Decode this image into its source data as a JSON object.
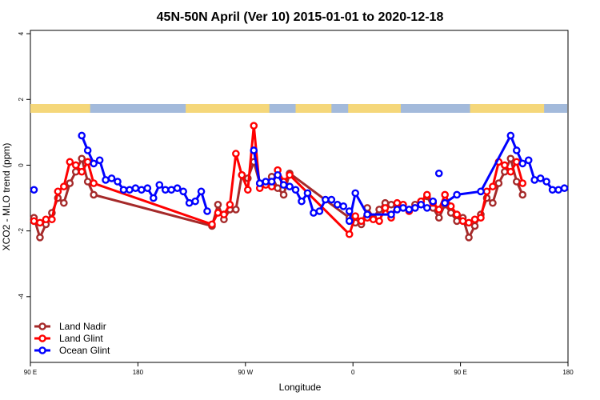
{
  "chart_data": {
    "type": "line",
    "title": "45N-50N April (Ver 10)   2015-01-01 to 2020-12-18",
    "xlabel": "Longitude",
    "ylabel": "XCO2 - MLO trend (ppm)",
    "xlim": [
      90,
      540
    ],
    "ylim": [
      -6,
      4.1
    ],
    "x_ticks": [
      {
        "value": 90,
        "label": "90 E"
      },
      {
        "value": 180,
        "label": "180"
      },
      {
        "value": 270,
        "label": "90 W"
      },
      {
        "value": 360,
        "label": "0"
      },
      {
        "value": 450,
        "label": "90 E"
      },
      {
        "value": 540,
        "label": "180"
      }
    ],
    "y_ticks": [
      -4,
      -2,
      0,
      2,
      4
    ],
    "land_bar_colors": {
      "land": "#F5D77A",
      "ocean": "#A3BADB"
    },
    "land_segments": [
      [
        90,
        140
      ],
      [
        220,
        290
      ],
      [
        312,
        342
      ],
      [
        356,
        400
      ],
      [
        458,
        520
      ]
    ],
    "legend_position": "bottom-left",
    "series": [
      {
        "name": "Land Nadir",
        "color": "#A52A2A",
        "points": [
          [
            93,
            -1.6
          ],
          [
            98,
            -2.2
          ],
          [
            103,
            -1.8
          ],
          [
            108,
            -1.45
          ],
          [
            113,
            -1.0
          ],
          [
            118,
            -1.15
          ],
          [
            123,
            -0.55
          ],
          [
            128,
            -0.2
          ],
          [
            133,
            0.2
          ],
          [
            138,
            -0.5
          ],
          [
            143,
            -0.9
          ],
          [
            242,
            -1.85
          ],
          [
            247,
            -1.2
          ],
          [
            252,
            -1.65
          ],
          [
            257,
            -1.35
          ],
          [
            262,
            -1.35
          ],
          [
            267,
            -0.3
          ],
          [
            272,
            -0.4
          ],
          [
            277,
            0.1
          ],
          [
            282,
            -0.55
          ],
          [
            287,
            -0.55
          ],
          [
            292,
            -0.35
          ],
          [
            297,
            -0.7
          ],
          [
            302,
            -0.9
          ],
          [
            307,
            -0.25
          ],
          [
            357,
            -1.6
          ],
          [
            362,
            -1.75
          ],
          [
            367,
            -1.8
          ],
          [
            372,
            -1.3
          ],
          [
            377,
            -1.6
          ],
          [
            382,
            -1.35
          ],
          [
            387,
            -1.15
          ],
          [
            392,
            -1.2
          ],
          [
            397,
            -1.25
          ],
          [
            402,
            -1.3
          ],
          [
            407,
            -1.35
          ],
          [
            412,
            -1.2
          ],
          [
            417,
            -1.1
          ],
          [
            422,
            -0.95
          ],
          [
            427,
            -1.3
          ],
          [
            432,
            -1.6
          ],
          [
            437,
            -1.2
          ],
          [
            442,
            -1.45
          ],
          [
            447,
            -1.7
          ],
          [
            452,
            -1.6
          ],
          [
            457,
            -2.2
          ],
          [
            462,
            -1.85
          ],
          [
            467,
            -1.5
          ],
          [
            472,
            -1.0
          ],
          [
            477,
            -1.15
          ],
          [
            482,
            -0.55
          ],
          [
            487,
            -0.2
          ],
          [
            492,
            0.2
          ],
          [
            497,
            -0.5
          ],
          [
            502,
            -0.9
          ]
        ]
      },
      {
        "name": "Land Glint",
        "color": "#FF0000",
        "points": [
          [
            93,
            -1.7
          ],
          [
            98,
            -1.75
          ],
          [
            103,
            -1.65
          ],
          [
            108,
            -1.65
          ],
          [
            113,
            -0.8
          ],
          [
            118,
            -0.65
          ],
          [
            123,
            0.1
          ],
          [
            128,
            0.0
          ],
          [
            133,
            -0.2
          ],
          [
            138,
            0.1
          ],
          [
            143,
            -0.55
          ],
          [
            242,
            -1.8
          ],
          [
            247,
            -1.45
          ],
          [
            252,
            -1.5
          ],
          [
            257,
            -1.2
          ],
          [
            262,
            0.35
          ],
          [
            267,
            -0.3
          ],
          [
            272,
            -0.75
          ],
          [
            277,
            1.2
          ],
          [
            282,
            -0.7
          ],
          [
            287,
            -0.6
          ],
          [
            292,
            -0.65
          ],
          [
            297,
            -0.15
          ],
          [
            302,
            -0.5
          ],
          [
            307,
            -0.3
          ],
          [
            357,
            -2.1
          ],
          [
            362,
            -1.55
          ],
          [
            367,
            -1.7
          ],
          [
            372,
            -1.6
          ],
          [
            377,
            -1.65
          ],
          [
            382,
            -1.7
          ],
          [
            387,
            -1.3
          ],
          [
            392,
            -1.6
          ],
          [
            397,
            -1.15
          ],
          [
            402,
            -1.2
          ],
          [
            407,
            -1.4
          ],
          [
            412,
            -1.3
          ],
          [
            417,
            -1.1
          ],
          [
            422,
            -0.9
          ],
          [
            427,
            -1.15
          ],
          [
            432,
            -1.35
          ],
          [
            437,
            -0.9
          ],
          [
            442,
            -1.25
          ],
          [
            447,
            -1.5
          ],
          [
            452,
            -1.7
          ],
          [
            457,
            -1.75
          ],
          [
            462,
            -1.65
          ],
          [
            467,
            -1.6
          ],
          [
            472,
            -0.8
          ],
          [
            477,
            -0.65
          ],
          [
            482,
            0.1
          ],
          [
            487,
            0.0
          ],
          [
            492,
            -0.2
          ],
          [
            497,
            0.1
          ],
          [
            502,
            -0.55
          ]
        ]
      },
      {
        "name": "Ocean Glint",
        "color": "#0000FF",
        "points": [
          [
            93,
            -0.75
          ],
          [
            133,
            0.9
          ],
          [
            138,
            0.45
          ],
          [
            143,
            0.05
          ],
          [
            148,
            0.15
          ],
          [
            153,
            -0.45
          ],
          [
            158,
            -0.4
          ],
          [
            163,
            -0.5
          ],
          [
            168,
            -0.75
          ],
          [
            173,
            -0.75
          ],
          [
            178,
            -0.7
          ],
          [
            183,
            -0.75
          ],
          [
            188,
            -0.7
          ],
          [
            193,
            -1.0
          ],
          [
            198,
            -0.6
          ],
          [
            203,
            -0.75
          ],
          [
            208,
            -0.75
          ],
          [
            213,
            -0.7
          ],
          [
            218,
            -0.8
          ],
          [
            223,
            -1.15
          ],
          [
            228,
            -1.1
          ],
          [
            233,
            -0.8
          ],
          [
            238,
            -1.4
          ],
          [
            277,
            0.45
          ],
          [
            282,
            -0.55
          ],
          [
            287,
            -0.5
          ],
          [
            292,
            -0.5
          ],
          [
            297,
            -0.3
          ],
          [
            302,
            -0.6
          ],
          [
            307,
            -0.65
          ],
          [
            312,
            -0.75
          ],
          [
            317,
            -1.1
          ],
          [
            322,
            -0.85
          ],
          [
            327,
            -1.45
          ],
          [
            332,
            -1.4
          ],
          [
            337,
            -1.05
          ],
          [
            342,
            -1.05
          ],
          [
            347,
            -1.2
          ],
          [
            352,
            -1.25
          ],
          [
            357,
            -1.4
          ],
          [
            357,
            -1.7
          ],
          [
            362,
            -0.85
          ],
          [
            372,
            -1.5
          ],
          [
            392,
            -1.5
          ],
          [
            397,
            -1.35
          ],
          [
            402,
            -1.3
          ],
          [
            407,
            -1.35
          ],
          [
            412,
            -1.3
          ],
          [
            417,
            -1.2
          ],
          [
            422,
            -1.3
          ],
          [
            427,
            -1.1
          ],
          [
            432,
            -0.25
          ],
          [
            437,
            -1.15
          ],
          [
            447,
            -0.9
          ],
          [
            467,
            -0.8
          ],
          [
            492,
            0.9
          ],
          [
            497,
            0.45
          ],
          [
            502,
            0.05
          ],
          [
            507,
            0.15
          ],
          [
            512,
            -0.45
          ],
          [
            517,
            -0.4
          ],
          [
            522,
            -0.5
          ],
          [
            527,
            -0.75
          ],
          [
            532,
            -0.75
          ],
          [
            537,
            -0.7
          ]
        ],
        "breaks": [
          1,
          23,
          37,
          39,
          40,
          50,
          51,
          52
        ]
      }
    ]
  }
}
